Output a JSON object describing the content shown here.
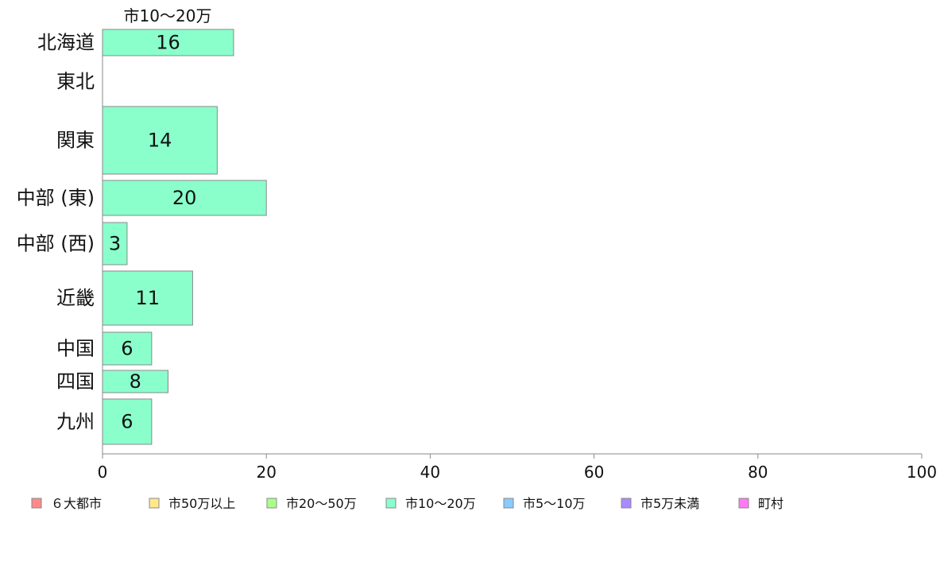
{
  "chart_data": {
    "type": "bar",
    "orientation": "horizontal",
    "title": "市10～20万",
    "categories": [
      "北海道",
      "東北",
      "関東",
      "中部 (東)",
      "中部 (西)",
      "近畿",
      "中国",
      "四国",
      "九州"
    ],
    "series": [
      {
        "name": "市10～20万",
        "color": "#8affcc",
        "values": [
          16,
          0,
          14,
          20,
          3,
          11,
          6,
          8,
          6
        ],
        "labels": [
          "16",
          "",
          "14",
          "20",
          "3",
          "11",
          "6",
          "8",
          "6"
        ]
      }
    ],
    "xlim": [
      0,
      100
    ],
    "xticks": [
      0,
      20,
      40,
      60,
      80,
      100
    ],
    "grid": false,
    "legend_placement": "bottom",
    "legend": [
      {
        "label": "６大都市",
        "color": "#ff8a8a"
      },
      {
        "label": "市50万以上",
        "color": "#ffe88a"
      },
      {
        "label": "市20～50万",
        "color": "#a8ff8a"
      },
      {
        "label": "市10～20万",
        "color": "#8affcc"
      },
      {
        "label": "市5～10万",
        "color": "#8acaff"
      },
      {
        "label": "市5万未満",
        "color": "#a98aff"
      },
      {
        "label": "町村",
        "color": "#ff7af2"
      }
    ],
    "bar_stroke": "#888888",
    "axis_color": "#888888"
  }
}
